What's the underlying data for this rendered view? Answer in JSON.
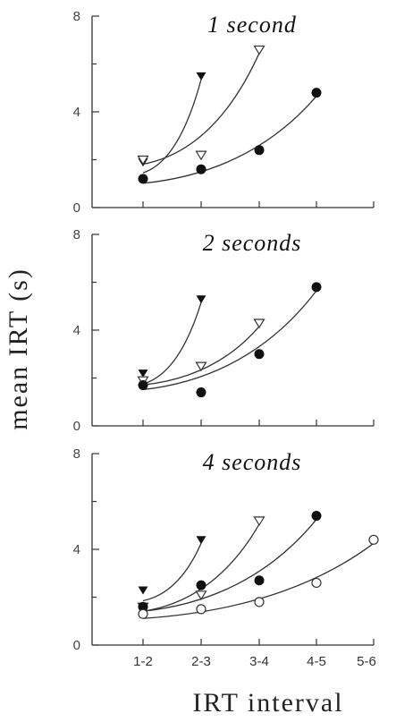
{
  "chart_data": {
    "ylabel": "mean IRT (s)",
    "xlabel": "IRT interval",
    "categories": [
      "1-2",
      "2-3",
      "3-4",
      "4-5",
      "5-6"
    ],
    "ylim": [
      0,
      8
    ],
    "yticks": [
      "0",
      "4",
      "8"
    ],
    "panels": [
      {
        "type": "scatter",
        "title": "1 second",
        "series": [
          {
            "marker": "filled-triangle",
            "values": [
              1.9,
              5.5
            ]
          },
          {
            "marker": "open-triangle",
            "values": [
              2.0,
              2.2,
              6.6
            ]
          },
          {
            "marker": "filled-circle",
            "values": [
              1.2,
              1.6,
              2.4,
              4.8
            ]
          }
        ]
      },
      {
        "type": "scatter",
        "title": "2 seconds",
        "series": [
          {
            "marker": "filled-triangle",
            "values": [
              2.2,
              5.3
            ]
          },
          {
            "marker": "open-triangle",
            "values": [
              1.9,
              2.5,
              4.3
            ]
          },
          {
            "marker": "filled-circle",
            "values": [
              1.7,
              1.4,
              3.0,
              5.8
            ]
          }
        ]
      },
      {
        "type": "scatter",
        "title": "4 seconds",
        "series": [
          {
            "marker": "filled-triangle",
            "values": [
              2.3,
              4.4
            ]
          },
          {
            "marker": "open-triangle",
            "values": [
              1.6,
              2.1,
              5.2
            ]
          },
          {
            "marker": "filled-circle",
            "values": [
              1.6,
              2.5,
              2.7,
              5.4
            ]
          },
          {
            "marker": "open-circle",
            "values": [
              1.3,
              1.5,
              1.8,
              2.6,
              4.4
            ]
          }
        ]
      }
    ]
  }
}
